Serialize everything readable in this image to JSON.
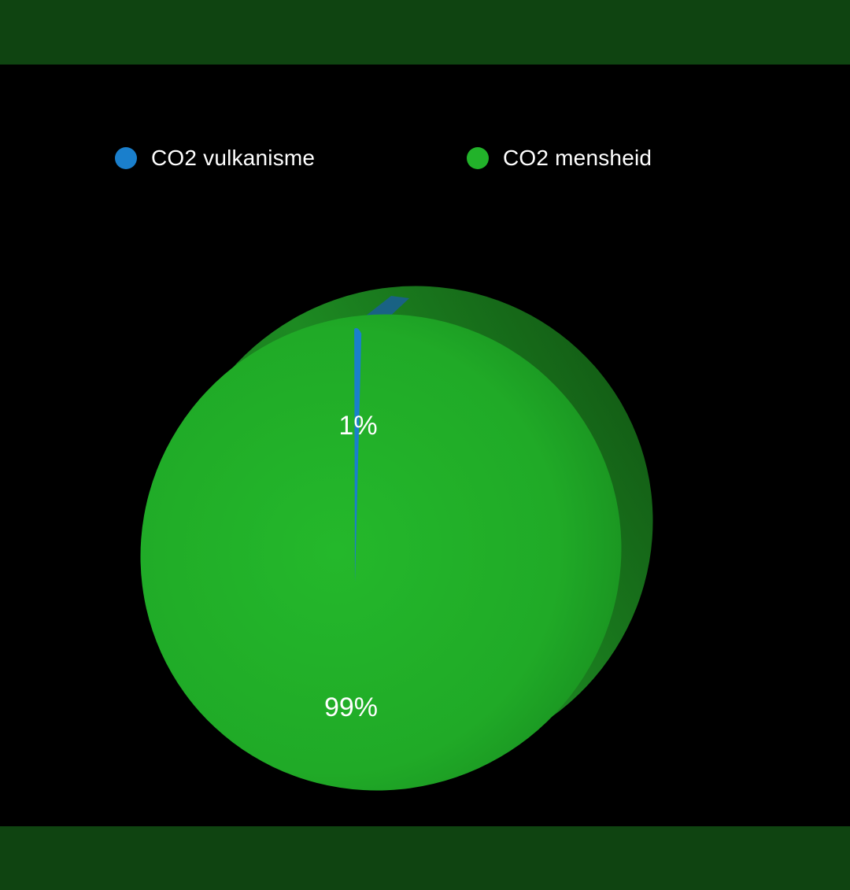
{
  "colors": {
    "band": "#0f4411",
    "background": "#000000"
  },
  "chart_data": {
    "type": "pie",
    "title": "",
    "legend_position": "top",
    "three_d": true,
    "slices": [
      {
        "name": "CO2 vulkanisme",
        "value": 1,
        "label": "1%",
        "color": "#1a7fcc"
      },
      {
        "name": "CO2 mensheid",
        "value": 99,
        "label": "99%",
        "color": "#22b22a"
      }
    ]
  }
}
